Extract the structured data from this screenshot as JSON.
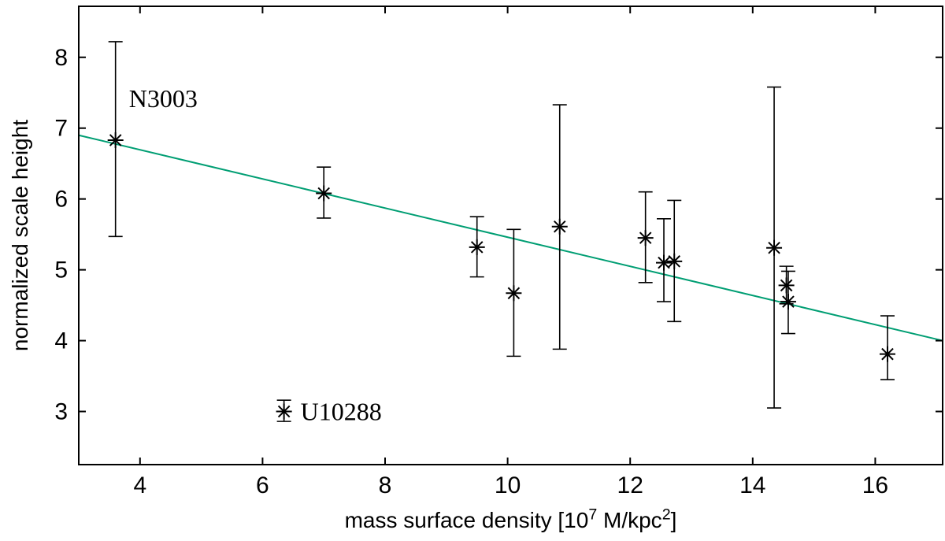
{
  "chart_data": {
    "type": "scatter",
    "title": "",
    "ylabel": "normalized scale height",
    "xlabel": {
      "prefix": "mass surface density [10",
      "sup1": "7",
      "mid": " M/kpc",
      "sup2": "2",
      "suffix": "]"
    },
    "xaxis": {
      "min": 3.0,
      "max": 17.1,
      "ticks": [
        4,
        6,
        8,
        10,
        12,
        14,
        16
      ]
    },
    "yaxis": {
      "min": 2.25,
      "max": 8.72,
      "ticks": [
        3,
        4,
        5,
        6,
        7,
        8
      ]
    },
    "grid": false,
    "legend": "none",
    "marker": "asterisk",
    "marker_color": "#000000",
    "line_color": "#009e73",
    "points": [
      {
        "x": 3.6,
        "y": 6.83,
        "ylow": 5.47,
        "yhigh": 8.22
      },
      {
        "x": 7.0,
        "y": 6.08,
        "ylow": 5.73,
        "yhigh": 6.45
      },
      {
        "x": 9.5,
        "y": 5.32,
        "ylow": 4.9,
        "yhigh": 5.75
      },
      {
        "x": 10.1,
        "y": 4.67,
        "ylow": 3.78,
        "yhigh": 5.57
      },
      {
        "x": 10.85,
        "y": 5.61,
        "ylow": 3.88,
        "yhigh": 7.33
      },
      {
        "x": 12.25,
        "y": 5.45,
        "ylow": 4.82,
        "yhigh": 6.1
      },
      {
        "x": 12.55,
        "y": 5.1,
        "ylow": 4.55,
        "yhigh": 5.72
      },
      {
        "x": 12.72,
        "y": 5.12,
        "ylow": 4.27,
        "yhigh": 5.98
      },
      {
        "x": 14.35,
        "y": 5.31,
        "ylow": 3.05,
        "yhigh": 7.58
      },
      {
        "x": 14.55,
        "y": 4.78,
        "ylow": 4.52,
        "yhigh": 5.05
      },
      {
        "x": 14.58,
        "y": 4.55,
        "ylow": 4.1,
        "yhigh": 4.98
      },
      {
        "x": 16.2,
        "y": 3.81,
        "ylow": 3.45,
        "yhigh": 4.35
      },
      {
        "x": 6.35,
        "y": 3.0,
        "ylow": 2.86,
        "yhigh": 3.16
      }
    ],
    "trend_line": {
      "x1": 3.0,
      "y1": 6.9,
      "x2": 17.1,
      "y2": 4.0
    },
    "annotations": [
      {
        "text": "N3003",
        "x": 3.82,
        "y": 7.42
      },
      {
        "text": "U10288",
        "x": 6.62,
        "y": 3.0
      }
    ]
  }
}
